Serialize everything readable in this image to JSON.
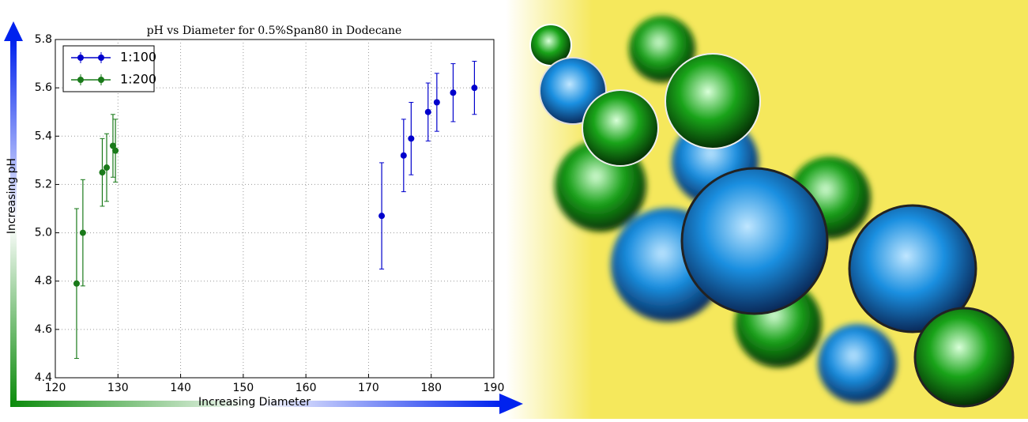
{
  "chart_data": {
    "type": "errorbar",
    "title": "pH vs Diameter for 0.5%Span80 in Dodecane",
    "xlabel": "Increasing Diameter",
    "ylabel": "Increasing pH",
    "xlim": [
      120,
      190
    ],
    "xticks": [
      120,
      130,
      140,
      150,
      160,
      170,
      180,
      190
    ],
    "ylim": [
      4.4,
      5.8
    ],
    "yticks": [
      4.4,
      4.6,
      4.8,
      {
        "value": 5,
        "label": "5.0"
      },
      5.2,
      5.4,
      5.6,
      5.8
    ],
    "grid": true,
    "legend": "upper-left",
    "series": [
      {
        "name": "1:100",
        "color": "#0000cc",
        "x": [
          172.1,
          175.6,
          176.8,
          179.5,
          180.9,
          183.5,
          186.9
        ],
        "values": [
          5.07,
          5.32,
          5.39,
          5.5,
          5.54,
          5.58,
          5.6
        ],
        "errors": [
          0.22,
          0.15,
          0.15,
          0.12,
          0.12,
          0.12,
          0.11
        ]
      },
      {
        "name": "1:200",
        "color": "#1a7a1a",
        "x": [
          123.4,
          124.4,
          127.5,
          128.2,
          129.2,
          129.6
        ],
        "values": [
          4.79,
          5.0,
          5.25,
          5.27,
          5.36,
          5.34
        ],
        "errors": [
          0.31,
          0.22,
          0.14,
          0.14,
          0.13,
          0.13
        ]
      }
    ]
  }
}
